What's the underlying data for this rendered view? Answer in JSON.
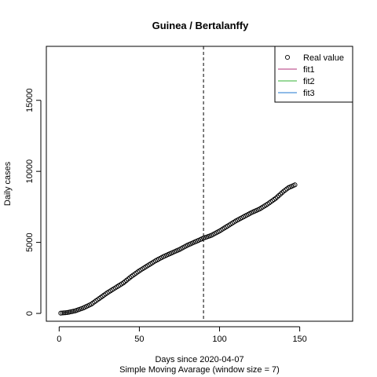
{
  "chart_data": {
    "type": "scatter",
    "title": "Guinea / Bertalanffy",
    "xlabel": "Days since 2020-04-07",
    "xlabel2": "Simple Moving Avarage (window size = 7)",
    "ylabel": "Daily cases",
    "xlim": [
      -8,
      183
    ],
    "ylim": [
      -550,
      18800
    ],
    "x_ticks": [
      0,
      50,
      100,
      150
    ],
    "y_ticks": [
      0,
      5000,
      10000,
      15000
    ],
    "x_tick_labels": [
      "0",
      "50",
      "100",
      "150"
    ],
    "y_tick_labels": [
      "0",
      "5000",
      "10000",
      "15000"
    ],
    "vline_x": 90,
    "legend_position": "top-right",
    "legend": [
      {
        "label": "Real value",
        "kind": "point",
        "color": "#000000"
      },
      {
        "label": "fit1",
        "kind": "line",
        "color": "#b0307a"
      },
      {
        "label": "fit2",
        "kind": "line",
        "color": "#33b033"
      },
      {
        "label": "fit3",
        "kind": "line",
        "color": "#1f77d0"
      }
    ],
    "series": [
      {
        "name": "Real value",
        "color": "#000000",
        "points": [
          [
            1,
            20
          ],
          [
            5,
            60
          ],
          [
            10,
            180
          ],
          [
            15,
            380
          ],
          [
            20,
            650
          ],
          [
            25,
            1050
          ],
          [
            30,
            1450
          ],
          [
            35,
            1800
          ],
          [
            40,
            2150
          ],
          [
            45,
            2600
          ],
          [
            50,
            3000
          ],
          [
            55,
            3350
          ],
          [
            60,
            3700
          ],
          [
            65,
            4000
          ],
          [
            70,
            4250
          ],
          [
            75,
            4500
          ],
          [
            80,
            4800
          ],
          [
            85,
            5050
          ],
          [
            90,
            5300
          ],
          [
            95,
            5500
          ],
          [
            100,
            5800
          ],
          [
            105,
            6150
          ],
          [
            110,
            6500
          ],
          [
            115,
            6800
          ],
          [
            120,
            7100
          ],
          [
            125,
            7350
          ],
          [
            130,
            7700
          ],
          [
            135,
            8100
          ],
          [
            140,
            8600
          ],
          [
            143,
            8850
          ],
          [
            147,
            9050
          ]
        ]
      }
    ]
  }
}
